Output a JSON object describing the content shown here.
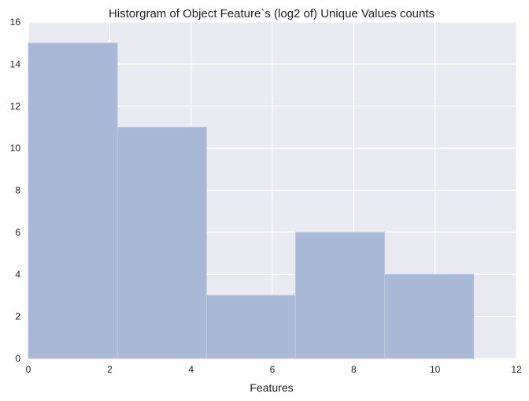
{
  "chart_data": {
    "type": "bar",
    "title": "Historgram of  Object Feature`s (log2 of) Unique Values counts",
    "xlabel": "Features",
    "ylabel": "",
    "xlim": [
      0,
      12
    ],
    "ylim": [
      0,
      16
    ],
    "xticks": [
      0,
      2,
      4,
      6,
      8,
      10,
      12
    ],
    "yticks": [
      0,
      2,
      4,
      6,
      8,
      10,
      12,
      14,
      16
    ],
    "grid": true,
    "bins": [
      {
        "x0": 0.0,
        "x1": 2.19,
        "count": 15
      },
      {
        "x0": 2.19,
        "x1": 4.38,
        "count": 11
      },
      {
        "x0": 4.38,
        "x1": 6.57,
        "count": 3
      },
      {
        "x0": 6.57,
        "x1": 8.76,
        "count": 6
      },
      {
        "x0": 8.76,
        "x1": 10.95,
        "count": 4
      }
    ],
    "colors": {
      "background": "#eaeaf2",
      "grid": "#ffffff",
      "bar": "#a9b8d6",
      "bar_edge": "#b9c6e0"
    }
  }
}
